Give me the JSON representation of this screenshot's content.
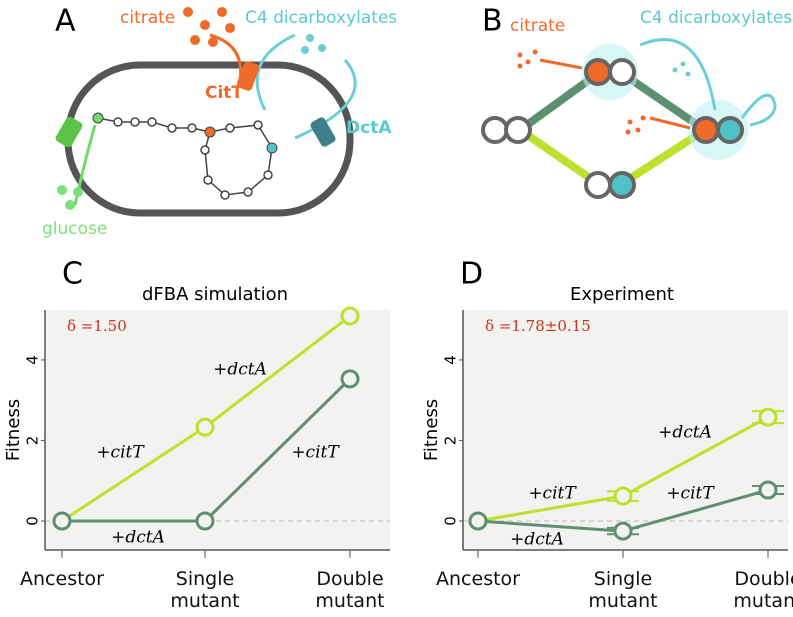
{
  "diagram_a": {
    "label": "A",
    "citrate": "citrate",
    "c4": "C4  dicarboxylates",
    "citt": "CitT",
    "dcta": "DctA",
    "glucose": "glucose"
  },
  "diagram_b": {
    "label": "B",
    "citrate": "citrate",
    "c4": "C4  dicarboxylates"
  },
  "chart_data": [
    {
      "type": "line",
      "panel": "C",
      "title": "dFBA  simulation",
      "y_label": "Fitness",
      "delta": "δ =1.50",
      "categories": [
        "Ancestor",
        "Single mutant",
        "Double mutant"
      ],
      "ylim": [
        -0.72,
        5.24
      ],
      "yticks": [
        0,
        2,
        4
      ],
      "series": [
        {
          "color": "#bde12d",
          "values": [
            0,
            2.33,
            5.09
          ]
        },
        {
          "color": "#5e8f70",
          "values": [
            0,
            0,
            3.53
          ]
        }
      ],
      "annotations": [
        "+citT",
        "+dctA",
        "+citT",
        "+dctA"
      ]
    },
    {
      "type": "line",
      "panel": "D",
      "title": "Experiment",
      "y_label": "Fitness",
      "delta": "δ =1.78±0.15",
      "categories": [
        "Ancestor",
        "Single mutant",
        "Double mutant"
      ],
      "ylim": [
        -0.72,
        5.24
      ],
      "yticks": [
        0,
        2,
        4
      ],
      "series": [
        {
          "color": "#bde12d",
          "values": [
            0,
            0.62,
            2.58
          ],
          "errors": [
            0,
            0.12,
            0.15
          ]
        },
        {
          "color": "#5e8f70",
          "values": [
            0,
            -0.25,
            0.77
          ],
          "errors": [
            0,
            0.08,
            0.1
          ]
        }
      ],
      "annotations": [
        "+citT",
        "+dctA",
        "+citT",
        "+dctA"
      ]
    }
  ]
}
